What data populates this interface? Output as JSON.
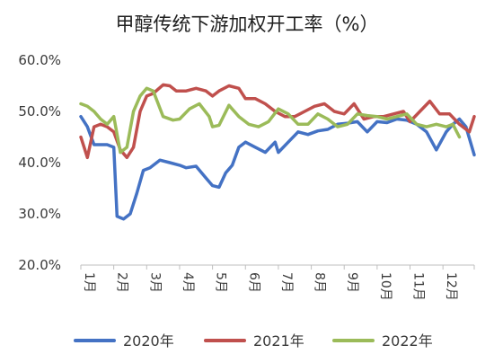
{
  "chart_data": {
    "type": "line",
    "title": "甲醇传统下游加权开工率（%）",
    "ylim": [
      20,
      60
    ],
    "y_ticks": [
      "20.0%",
      "30.0%",
      "40.0%",
      "50.0%",
      "60.0%"
    ],
    "y_tick_values": [
      20,
      30,
      40,
      50,
      60
    ],
    "x_range": [
      1,
      12.95
    ],
    "month_labels": [
      "1月",
      "2月",
      "3月",
      "4月",
      "5月",
      "6月",
      "7月",
      "8月",
      "9月",
      "10月",
      "11月",
      "12月"
    ],
    "grid": false,
    "legend_position": "bottom",
    "series": [
      {
        "name": "2020年",
        "color": "#4472C4",
        "points": [
          [
            1.0,
            49
          ],
          [
            1.2,
            47
          ],
          [
            1.4,
            43.5
          ],
          [
            1.8,
            43.5
          ],
          [
            2.0,
            43
          ],
          [
            2.1,
            29.5
          ],
          [
            2.3,
            29
          ],
          [
            2.5,
            30
          ],
          [
            2.7,
            34
          ],
          [
            2.9,
            38.5
          ],
          [
            3.1,
            39
          ],
          [
            3.4,
            40.5
          ],
          [
            3.7,
            40
          ],
          [
            4.0,
            39.5
          ],
          [
            4.2,
            39
          ],
          [
            4.5,
            39.3
          ],
          [
            4.8,
            37
          ],
          [
            5.0,
            35.5
          ],
          [
            5.2,
            35.2
          ],
          [
            5.4,
            38
          ],
          [
            5.6,
            39.5
          ],
          [
            5.8,
            43
          ],
          [
            6.0,
            44
          ],
          [
            6.3,
            43
          ],
          [
            6.6,
            42
          ],
          [
            6.9,
            44
          ],
          [
            7.0,
            42
          ],
          [
            7.3,
            44
          ],
          [
            7.6,
            46
          ],
          [
            7.9,
            45.5
          ],
          [
            8.2,
            46.2
          ],
          [
            8.5,
            46.5
          ],
          [
            8.8,
            47.5
          ],
          [
            9.1,
            47.7
          ],
          [
            9.4,
            48
          ],
          [
            9.7,
            46
          ],
          [
            10.0,
            48
          ],
          [
            10.3,
            47.8
          ],
          [
            10.6,
            48.5
          ],
          [
            10.9,
            48.3
          ],
          [
            11.2,
            47.5
          ],
          [
            11.5,
            46
          ],
          [
            11.8,
            42.5
          ],
          [
            12.1,
            46
          ],
          [
            12.3,
            47.5
          ],
          [
            12.5,
            48.5
          ],
          [
            12.7,
            47
          ],
          [
            12.95,
            41.5
          ]
        ]
      },
      {
        "name": "2021年",
        "color": "#C0504D",
        "points": [
          [
            1.0,
            45
          ],
          [
            1.2,
            41
          ],
          [
            1.4,
            47
          ],
          [
            1.6,
            47.5
          ],
          [
            1.8,
            47
          ],
          [
            2.0,
            46
          ],
          [
            2.2,
            42.5
          ],
          [
            2.4,
            41
          ],
          [
            2.6,
            43
          ],
          [
            2.8,
            50
          ],
          [
            3.0,
            53
          ],
          [
            3.2,
            53.5
          ],
          [
            3.5,
            55.2
          ],
          [
            3.7,
            55
          ],
          [
            3.9,
            54
          ],
          [
            4.2,
            54
          ],
          [
            4.5,
            54.5
          ],
          [
            4.8,
            54
          ],
          [
            5.0,
            53
          ],
          [
            5.2,
            54
          ],
          [
            5.5,
            55
          ],
          [
            5.8,
            54.5
          ],
          [
            6.0,
            52.5
          ],
          [
            6.3,
            52.5
          ],
          [
            6.6,
            51.5
          ],
          [
            6.9,
            50
          ],
          [
            7.2,
            49
          ],
          [
            7.5,
            49
          ],
          [
            7.8,
            50
          ],
          [
            8.1,
            51
          ],
          [
            8.4,
            51.5
          ],
          [
            8.7,
            50
          ],
          [
            9.0,
            49.5
          ],
          [
            9.3,
            51.5
          ],
          [
            9.6,
            48.5
          ],
          [
            9.9,
            49
          ],
          [
            10.2,
            49
          ],
          [
            10.5,
            49.5
          ],
          [
            10.8,
            50
          ],
          [
            11.0,
            48
          ],
          [
            11.3,
            50
          ],
          [
            11.6,
            52
          ],
          [
            11.9,
            49.5
          ],
          [
            12.2,
            49.5
          ],
          [
            12.5,
            47.5
          ],
          [
            12.8,
            46
          ],
          [
            12.95,
            49
          ]
        ]
      },
      {
        "name": "2022年",
        "color": "#9BBB59",
        "points": [
          [
            1.0,
            51.5
          ],
          [
            1.2,
            51
          ],
          [
            1.4,
            50
          ],
          [
            1.6,
            48.5
          ],
          [
            1.8,
            47.5
          ],
          [
            2.0,
            49
          ],
          [
            2.2,
            42
          ],
          [
            2.4,
            43
          ],
          [
            2.6,
            50
          ],
          [
            2.8,
            53
          ],
          [
            3.0,
            54.5
          ],
          [
            3.2,
            54
          ],
          [
            3.5,
            49
          ],
          [
            3.8,
            48.3
          ],
          [
            4.0,
            48.5
          ],
          [
            4.3,
            50.5
          ],
          [
            4.6,
            51.5
          ],
          [
            4.9,
            49
          ],
          [
            5.0,
            47
          ],
          [
            5.2,
            47.3
          ],
          [
            5.5,
            51.2
          ],
          [
            5.8,
            49
          ],
          [
            6.1,
            47.5
          ],
          [
            6.4,
            47
          ],
          [
            6.7,
            48
          ],
          [
            7.0,
            50.5
          ],
          [
            7.3,
            49.5
          ],
          [
            7.6,
            47.5
          ],
          [
            7.9,
            47.5
          ],
          [
            8.2,
            49.5
          ],
          [
            8.5,
            48.5
          ],
          [
            8.8,
            47
          ],
          [
            9.1,
            47.5
          ],
          [
            9.4,
            49.5
          ],
          [
            9.7,
            49.2
          ],
          [
            10.0,
            49
          ],
          [
            10.3,
            48.5
          ],
          [
            10.6,
            49
          ],
          [
            10.9,
            49.5
          ],
          [
            11.2,
            47.5
          ],
          [
            11.5,
            47
          ],
          [
            11.8,
            47.5
          ],
          [
            12.1,
            47
          ],
          [
            12.3,
            47.5
          ],
          [
            12.5,
            45
          ]
        ]
      }
    ]
  }
}
